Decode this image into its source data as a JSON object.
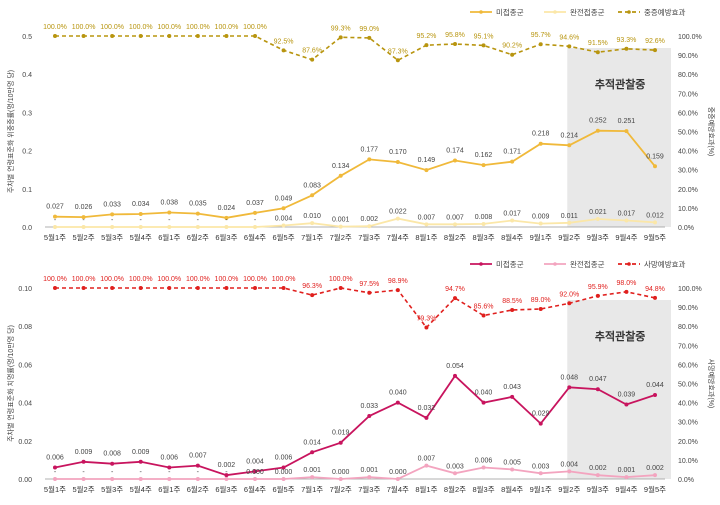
{
  "chart_data": [
    {
      "type": "line",
      "categories": [
        "5월1주",
        "5월2주",
        "5월3주",
        "5월4주",
        "6월1주",
        "6월2주",
        "6월3주",
        "6월4주",
        "6월5주",
        "7월1주",
        "7월2주",
        "7월3주",
        "7월4주",
        "8월1주",
        "8월2주",
        "8월3주",
        "8월4주",
        "9월1주",
        "9월2주",
        "9월3주",
        "9월4주",
        "9월5주"
      ],
      "ylabel": "주차별 연령표준화 위중증률(명/10만명 당)",
      "y2label": "중증예방효과(%)",
      "ylim": [
        0,
        0.5
      ],
      "y_ticks": [
        "0.0",
        "0.1",
        "0.2",
        "0.3",
        "0.4",
        "0.5"
      ],
      "y2lim": [
        0,
        100
      ],
      "y2_ticks": [
        "0.0%",
        "10.0%",
        "20.0%",
        "30.0%",
        "40.0%",
        "50.0%",
        "60.0%",
        "70.0%",
        "80.0%",
        "90.0%",
        "100.0%"
      ],
      "annotation": "추적관찰중",
      "shade_from": "9월2주",
      "legend_position": "top-right",
      "series": [
        {
          "name": "미접종군",
          "color": "#f0b93a",
          "axis": "left",
          "style": "solid",
          "values": [
            0.027,
            0.026,
            0.033,
            0.034,
            0.038,
            0.035,
            0.024,
            0.037,
            0.049,
            0.083,
            0.134,
            0.177,
            0.17,
            0.149,
            0.174,
            0.162,
            0.171,
            0.218,
            0.214,
            0.252,
            0.251,
            0.159
          ],
          "labels": [
            "0.027",
            "0.026",
            "0.033",
            "0.034",
            "0.038",
            "0.035",
            "0.024",
            "0.037",
            "0.049",
            "0.083",
            "0.134",
            "0.177",
            "0.170",
            "0.149",
            "0.174",
            "0.162",
            "0.171",
            "0.218",
            "0.214",
            "0.252",
            "0.251",
            "0.159"
          ]
        },
        {
          "name": "완전접종군",
          "color": "#fbe7a8",
          "axis": "left",
          "style": "solid",
          "values": [
            0.0,
            0.0,
            0.0,
            0.0,
            0.0,
            0.0,
            0.0,
            0.0,
            0.004,
            0.01,
            0.001,
            0.002,
            0.022,
            0.007,
            0.007,
            0.008,
            0.017,
            0.009,
            0.011,
            0.021,
            0.017,
            0.012
          ],
          "labels": [
            "-",
            "-",
            "-",
            "-",
            "-",
            "-",
            "-",
            "-",
            "0.004",
            "0.010",
            "0.001",
            "0.002",
            "0.022",
            "0.007",
            "0.007",
            "0.008",
            "0.017",
            "0.009",
            "0.011",
            "0.021",
            "0.017",
            "0.012"
          ]
        },
        {
          "name": "중증예방효과",
          "color": "#b8950f",
          "axis": "right",
          "style": "dashed",
          "values": [
            100.0,
            100.0,
            100.0,
            100.0,
            100.0,
            100.0,
            100.0,
            100.0,
            92.5,
            87.6,
            99.3,
            99.0,
            87.3,
            95.2,
            95.8,
            95.1,
            90.2,
            95.7,
            94.6,
            91.5,
            93.3,
            92.6
          ],
          "labels": [
            "100.0%",
            "100.0%",
            "100.0%",
            "100.0%",
            "100.0%",
            "100.0%",
            "100.0%",
            "100.0%",
            "92.5%",
            "87.6%",
            "99.3%",
            "99.0%",
            "87.3%",
            "95.2%",
            "95.8%",
            "95.1%",
            "90.2%",
            "95.7%",
            "94.6%",
            "91.5%",
            "93.3%",
            "92.6%"
          ]
        }
      ]
    },
    {
      "type": "line",
      "categories": [
        "5월1주",
        "5월2주",
        "5월3주",
        "5월4주",
        "6월1주",
        "6월2주",
        "6월3주",
        "6월4주",
        "6월5주",
        "7월1주",
        "7월2주",
        "7월3주",
        "7월4주",
        "8월1주",
        "8월2주",
        "8월3주",
        "8월4주",
        "9월1주",
        "9월2주",
        "9월3주",
        "9월4주",
        "9월5주"
      ],
      "ylabel": "주차별 연령표준화 치명률(명/10만명 당)",
      "y2label": "사망예방효과(%)",
      "ylim": [
        0,
        0.1
      ],
      "y_ticks": [
        "0.00",
        "0.02",
        "0.04",
        "0.06",
        "0.08",
        "0.10"
      ],
      "y2lim": [
        0,
        100
      ],
      "y2_ticks": [
        "0.0%",
        "10.0%",
        "20.0%",
        "30.0%",
        "40.0%",
        "50.0%",
        "60.0%",
        "70.0%",
        "80.0%",
        "90.0%",
        "100.0%"
      ],
      "annotation": "추적관찰중",
      "shade_from": "9월2주",
      "legend_position": "top-right",
      "series": [
        {
          "name": "미접종군",
          "color": "#c8145e",
          "axis": "left",
          "style": "solid",
          "values": [
            0.006,
            0.009,
            0.008,
            0.009,
            0.006,
            0.007,
            0.002,
            0.004,
            0.006,
            0.014,
            0.019,
            0.033,
            0.04,
            0.032,
            0.054,
            0.04,
            0.043,
            0.029,
            0.048,
            0.047,
            0.039,
            0.044
          ],
          "labels": [
            "0.006",
            "0.009",
            "0.008",
            "0.009",
            "0.006",
            "0.007",
            "0.002",
            "0.004",
            "0.006",
            "0.014",
            "0.019",
            "0.033",
            "0.040",
            "0.032",
            "0.054",
            "0.040",
            "0.043",
            "0.029",
            "0.048",
            "0.047",
            "0.039",
            "0.044"
          ]
        },
        {
          "name": "완전접종군",
          "color": "#f3a4bf",
          "axis": "left",
          "style": "solid",
          "values": [
            0.0,
            0.0,
            0.0,
            0.0,
            0.0,
            0.0,
            0.0,
            0.0,
            0.0,
            0.001,
            0.0,
            0.001,
            0.0,
            0.007,
            0.003,
            0.006,
            0.005,
            0.003,
            0.004,
            0.002,
            0.001,
            0.002
          ],
          "labels": [
            "-",
            "-",
            "-",
            "-",
            "-",
            "-",
            "-",
            "0.000",
            "0.000",
            "0.001",
            "0.000",
            "0.001",
            "0.000",
            "0.007",
            "0.003",
            "0.006",
            "0.005",
            "0.003",
            "0.004",
            "0.002",
            "0.001",
            "0.002"
          ]
        },
        {
          "name": "사망예방효과",
          "color": "#e0201e",
          "axis": "right",
          "style": "dashed",
          "values": [
            100.0,
            100.0,
            100.0,
            100.0,
            100.0,
            100.0,
            100.0,
            100.0,
            100.0,
            96.3,
            100.0,
            97.5,
            98.9,
            79.3,
            94.7,
            85.6,
            88.5,
            89.0,
            92.0,
            95.9,
            98.0,
            94.8
          ],
          "labels": [
            "100.0%",
            "100.0%",
            "100.0%",
            "100.0%",
            "100.0%",
            "100.0%",
            "100.0%",
            "100.0%",
            "100.0%",
            "96.3%",
            "100.0%",
            "97.5%",
            "98.9%",
            "79.3%",
            "94.7%",
            "85.6%",
            "88.5%",
            "89.0%",
            "92.0%",
            "95.9%",
            "98.0%",
            "94.8%"
          ]
        }
      ]
    }
  ]
}
